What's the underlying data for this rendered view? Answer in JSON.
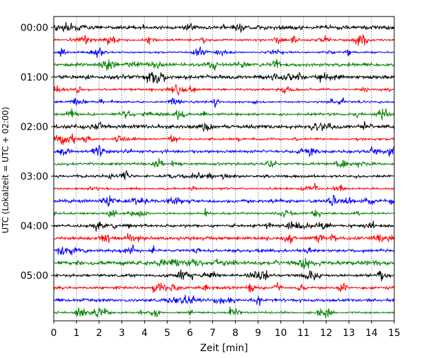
{
  "chart_data": {
    "type": "line",
    "title": "",
    "xlabel": "Zeit  [min]",
    "ylabel": "UTC (Lokalzeit = UTC + 02:00)",
    "xlim": [
      0,
      15
    ],
    "x_ticks": [
      "0",
      "1",
      "2",
      "3",
      "4",
      "5",
      "6",
      "7",
      "8",
      "9",
      "10",
      "11",
      "12",
      "13",
      "14",
      "15"
    ],
    "y_tick_labels": [
      "00:00",
      "01:00",
      "02:00",
      "03:00",
      "04:00",
      "05:00"
    ],
    "y_tick_hours": [
      0,
      1,
      2,
      3,
      4,
      5
    ],
    "traces_per_hour": 4,
    "trace_start_times": [
      "00:00",
      "00:15",
      "00:30",
      "00:45",
      "01:00",
      "01:15",
      "01:30",
      "01:45",
      "02:00",
      "02:15",
      "02:30",
      "02:45",
      "03:00",
      "03:15",
      "03:30",
      "03:45",
      "04:00",
      "04:15",
      "04:30",
      "04:45",
      "05:00",
      "05:15",
      "05:30",
      "05:45"
    ],
    "trace_colors": [
      "#000000",
      "#ff0000",
      "#0000ff",
      "#008000"
    ],
    "grid": "vertical-dotted",
    "legend": "none"
  }
}
